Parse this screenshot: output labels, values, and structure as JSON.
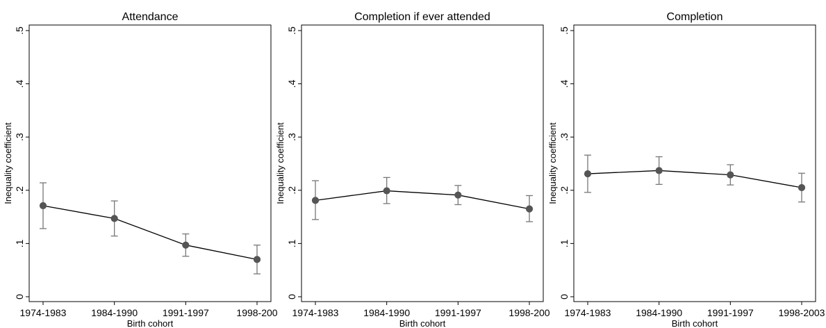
{
  "chart_data": [
    {
      "type": "line",
      "title": "Attendance",
      "xlabel": "Birth cohort",
      "ylabel": "Inequality coefficient",
      "categories": [
        "1974-1983",
        "1984-1990",
        "1991-1997",
        "1998-200"
      ],
      "yticks": [
        "0",
        ".1",
        ".2",
        ".3",
        ".4",
        ".5"
      ],
      "ylim": [
        0,
        0.5
      ],
      "series": [
        {
          "values": [
            0.171,
            0.147,
            0.097,
            0.07
          ],
          "ci_low": [
            0.128,
            0.114,
            0.076,
            0.043
          ],
          "ci_high": [
            0.214,
            0.18,
            0.118,
            0.097
          ]
        }
      ],
      "grid": false,
      "color": "#555555"
    },
    {
      "type": "line",
      "title": "Completion if ever attended",
      "xlabel": "Birth cohort",
      "ylabel": "Inequality coefficient",
      "categories": [
        "1974-1983",
        "1984-1990",
        "1991-1997",
        "1998-200"
      ],
      "yticks": [
        "0",
        ".1",
        ".2",
        ".3",
        ".4",
        ".5"
      ],
      "ylim": [
        0,
        0.5
      ],
      "series": [
        {
          "values": [
            0.181,
            0.199,
            0.191,
            0.165
          ],
          "ci_low": [
            0.145,
            0.175,
            0.173,
            0.141
          ],
          "ci_high": [
            0.218,
            0.224,
            0.209,
            0.19
          ]
        }
      ],
      "grid": false,
      "color": "#555555"
    },
    {
      "type": "line",
      "title": "Completion",
      "xlabel": "Birth cohort",
      "ylabel": "Inequality coefficient",
      "categories": [
        "1974-1983",
        "1984-1990",
        "1991-1997",
        "1998-2003"
      ],
      "yticks": [
        "0",
        ".1",
        ".2",
        ".3",
        ".4",
        ".5"
      ],
      "ylim": [
        0,
        0.5
      ],
      "series": [
        {
          "values": [
            0.231,
            0.237,
            0.229,
            0.205
          ],
          "ci_low": [
            0.196,
            0.211,
            0.21,
            0.178
          ],
          "ci_high": [
            0.266,
            0.263,
            0.248,
            0.232
          ]
        }
      ],
      "grid": false,
      "color": "#555555"
    }
  ]
}
